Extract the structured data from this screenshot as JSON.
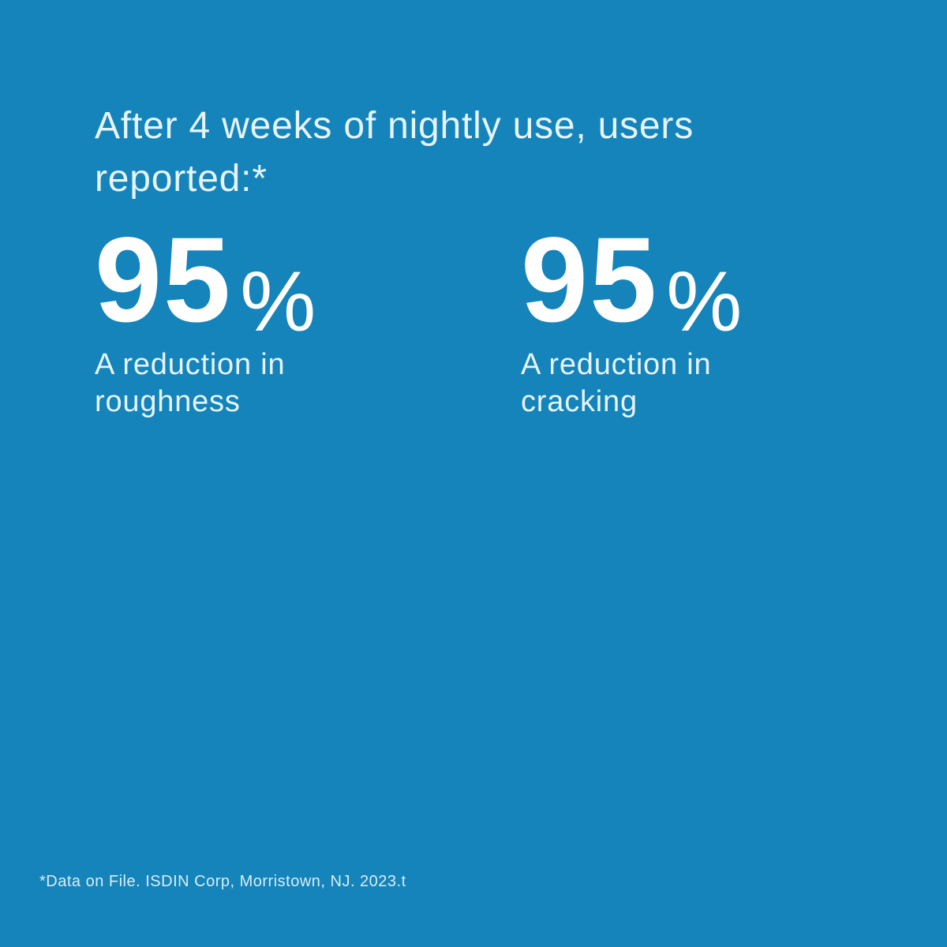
{
  "theme": {
    "background_color": "#1484BA",
    "text_color": "#E6F4FA",
    "stat_value_color": "#FFFFFF",
    "footnote_color": "#D8EDF6"
  },
  "heading": {
    "text": "After 4 weeks of nightly use, users reported:*"
  },
  "stats": [
    {
      "value": "95",
      "unit": "%",
      "label": "A reduction in roughness"
    },
    {
      "value": "95",
      "unit": "%",
      "label": "A reduction in cracking"
    }
  ],
  "footnote": {
    "text": "*Data on File. ISDIN Corp, Morristown, NJ. 2023.t"
  }
}
